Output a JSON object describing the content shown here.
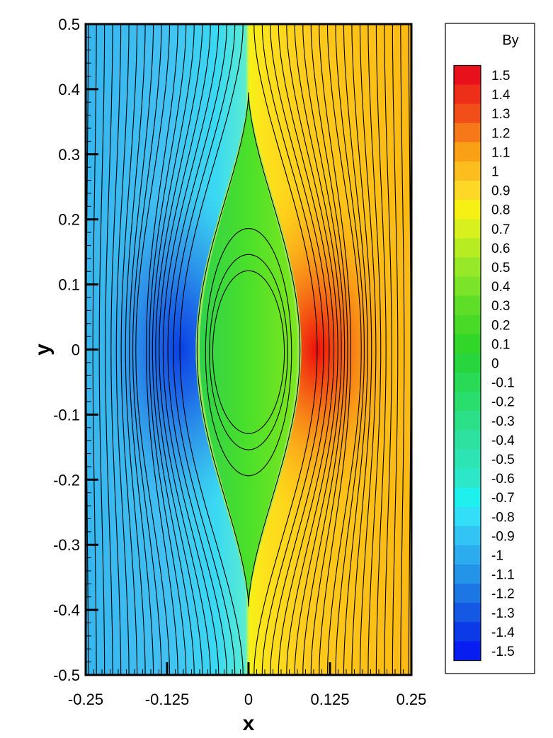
{
  "chart_data": {
    "type": "contour",
    "title": "",
    "xlabel": "x",
    "ylabel": "y",
    "xlim": [
      -0.25,
      0.25
    ],
    "ylim": [
      -0.5,
      0.5
    ],
    "x_ticks": [
      -0.25,
      -0.125,
      0,
      0.125,
      0.25
    ],
    "x_tick_labels": [
      "-0.25",
      "-0.125",
      "0",
      "0.125",
      "0.25"
    ],
    "y_ticks": [
      -0.5,
      -0.4,
      -0.3,
      -0.2,
      -0.1,
      0,
      0.1,
      0.2,
      0.3,
      0.4,
      0.5
    ],
    "y_tick_labels": [
      "-0.5",
      "-0.4",
      "-0.3",
      "-0.2",
      "-0.1",
      "0",
      "0.1",
      "0.2",
      "0.3",
      "0.4",
      "0.5"
    ],
    "colorbar": {
      "title": "By",
      "levels": [
        1.5,
        1.4,
        1.3,
        1.2,
        1.1,
        1,
        0.9,
        0.8,
        0.7,
        0.6,
        0.5,
        0.4,
        0.3,
        0.2,
        0.1,
        0,
        -0.1,
        -0.2,
        -0.3,
        -0.4,
        -0.5,
        -0.6,
        -0.7,
        -0.8,
        -0.9,
        -1,
        -1.1,
        -1.2,
        -1.3,
        -1.4,
        -1.5
      ],
      "level_labels": [
        "1.5",
        "1.4",
        "1.3",
        "1.2",
        "1.1",
        "1",
        "0.9",
        "0.8",
        "0.7",
        "0.6",
        "0.5",
        "0.4",
        "0.3",
        "0.2",
        "0.1",
        "0",
        "-0.1",
        "-0.2",
        "-0.3",
        "-0.4",
        "-0.5",
        "-0.6",
        "-0.7",
        "-0.8",
        "-0.9",
        "-1",
        "-1.1",
        "-1.2",
        "-1.3",
        "-1.4",
        "-1.5"
      ],
      "placement": "right"
    },
    "field_features": {
      "current_sheet_x": 0,
      "island_half_height": 0.395,
      "island_half_width": 0.075,
      "peak_By_positive": 1.5,
      "peak_By_negative": -1.5,
      "peak_location_y": 0
    }
  }
}
